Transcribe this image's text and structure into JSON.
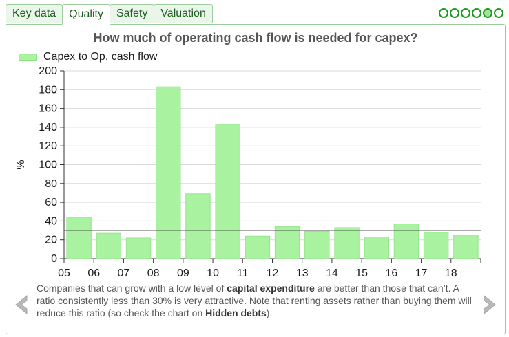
{
  "tabs": [
    {
      "label": "Key data",
      "active": false
    },
    {
      "label": "Quality",
      "active": true
    },
    {
      "label": "Safety",
      "active": false
    },
    {
      "label": "Valuation",
      "active": false
    }
  ],
  "pager": {
    "count": 6,
    "active_index": 4
  },
  "colors": {
    "tab_bg": "#e9f6e9",
    "tab_border": "#9ccc9c",
    "accent_green": "#1c9a1c",
    "bar_fill": "#a8f2a0",
    "reference_line": "#555555",
    "text_gray": "#555555"
  },
  "chart_data": {
    "type": "bar",
    "title": "How much of operating cash flow is needed for capex?",
    "legend": {
      "label": "Capex to Op. cash flow",
      "placement": "top-left"
    },
    "ylabel": "%",
    "ylim": [
      0,
      200
    ],
    "yticks": [
      0,
      20,
      40,
      60,
      80,
      100,
      120,
      140,
      160,
      180,
      200
    ],
    "grid": true,
    "xtick_labels": [
      "05",
      "06",
      "07",
      "08",
      "09",
      "10",
      "11",
      "12",
      "13",
      "14",
      "15",
      "16",
      "17",
      "18"
    ],
    "categories": [
      "05",
      "06",
      "07",
      "08",
      "09",
      "10",
      "11",
      "12",
      "13",
      "14",
      "15",
      "16",
      "17",
      "18"
    ],
    "values": [
      44,
      27,
      22,
      183,
      69,
      143,
      24,
      34,
      29,
      33,
      23,
      37,
      28,
      25
    ],
    "reference_line_value": 30
  },
  "footnote": {
    "part1": "Companies that can grow with a low level of ",
    "bold1": "capital expenditure",
    "part2": " are better than those that can’t. A ratio consistently less than 30% is very attractive. Note that renting assets rather than buying them will reduce this ratio (so check the chart on ",
    "bold2": "Hidden debts",
    "part3": ")."
  },
  "nav": {
    "left_icon": "chevron-left-icon",
    "right_icon": "chevron-right-icon"
  }
}
